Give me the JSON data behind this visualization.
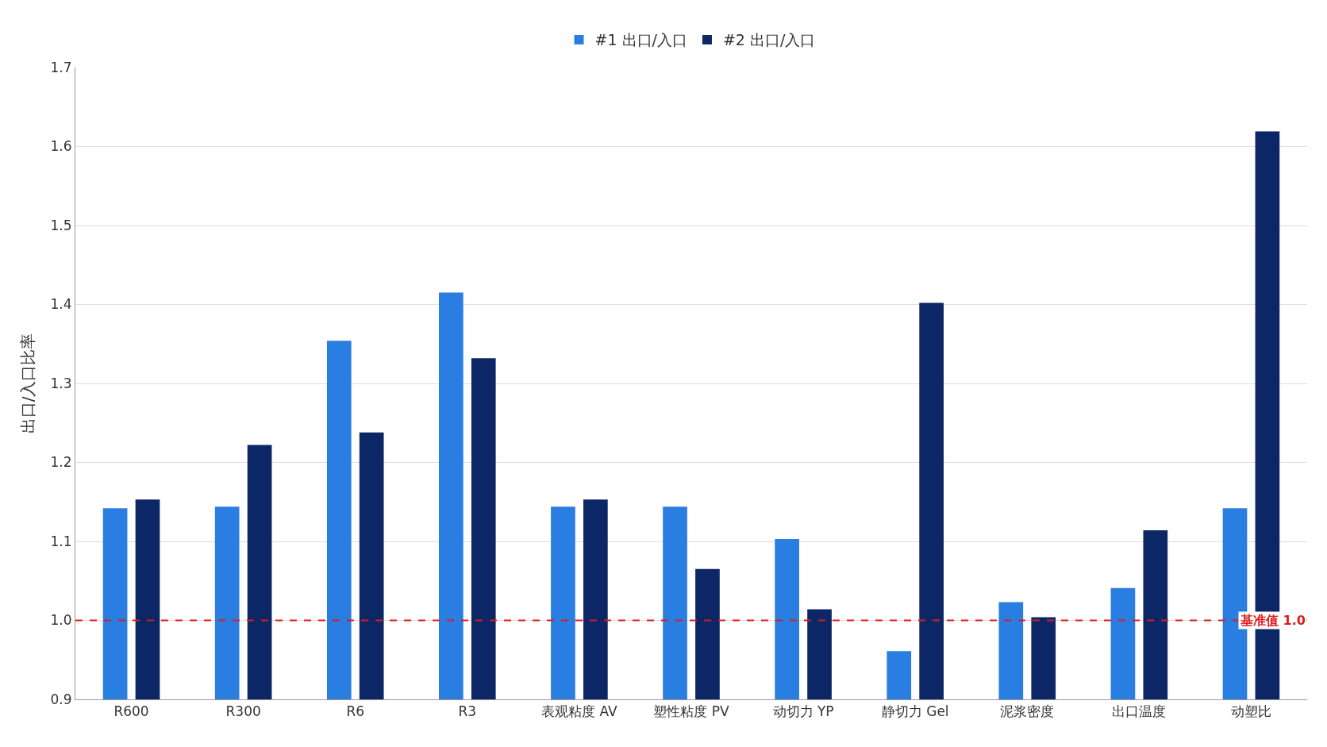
{
  "chart_data": {
    "type": "bar",
    "ylabel": "出口/入口比率",
    "categories": [
      "R600",
      "R300",
      "R6",
      "R3",
      "表观粘度 AV",
      "塑性粘度 PV",
      "动切力 YP",
      "静切力 Gel",
      "泥浆密度",
      "出口温度",
      "动塑比"
    ],
    "series": [
      {
        "name": "#1 出口/入口",
        "color": "#2a7de1",
        "values": [
          1.142,
          1.144,
          1.354,
          1.415,
          1.144,
          1.144,
          1.103,
          0.961,
          1.023,
          1.041,
          1.142
        ]
      },
      {
        "name": "#2 出口/入口",
        "color": "#0d2766",
        "values": [
          1.153,
          1.222,
          1.238,
          1.332,
          1.153,
          1.065,
          1.014,
          1.402,
          1.004,
          1.114,
          1.619
        ]
      }
    ],
    "ylim": [
      0.9,
      1.7
    ],
    "yticks": [
      0.9,
      {
        "value": 1,
        "label": "1.0"
      },
      1.1,
      1.2,
      1.3,
      1.4,
      1.5,
      1.6,
      1.7
    ],
    "ref_lines": [
      {
        "axis": "y",
        "value": 1.0,
        "label": "基准值 1.0",
        "color": "#e01b1b",
        "line_style": "dashed"
      }
    ],
    "grid": "y",
    "legend": "top"
  }
}
